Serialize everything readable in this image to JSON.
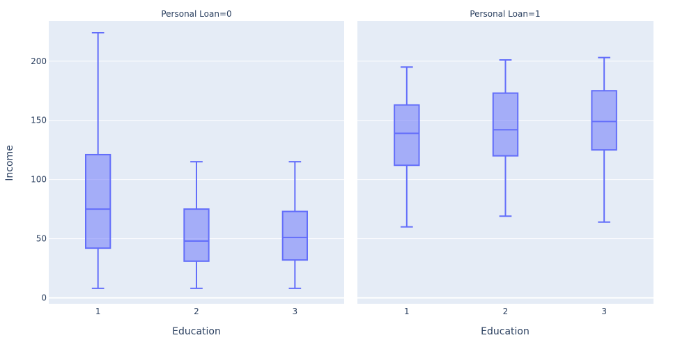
{
  "chart_data": {
    "type": "box",
    "ylabel": "Income",
    "ylim": [
      -5,
      234
    ],
    "yticks": [
      0,
      50,
      100,
      150,
      200
    ],
    "xlabel": "Education",
    "categories": [
      "1",
      "2",
      "3"
    ],
    "color": "#636efa",
    "grid": true,
    "facets": [
      {
        "title": "Personal Loan=0",
        "boxes": [
          {
            "category": "1",
            "min": 8,
            "q1": 42,
            "median": 75,
            "q3": 121,
            "max": 224
          },
          {
            "category": "2",
            "min": 8,
            "q1": 31,
            "median": 48,
            "q3": 75,
            "max": 115
          },
          {
            "category": "3",
            "min": 8,
            "q1": 32,
            "median": 51,
            "q3": 73,
            "max": 115
          }
        ]
      },
      {
        "title": "Personal Loan=1",
        "boxes": [
          {
            "category": "1",
            "min": 60,
            "q1": 112,
            "median": 139,
            "q3": 163,
            "max": 195
          },
          {
            "category": "2",
            "min": 69,
            "q1": 120,
            "median": 142,
            "q3": 173,
            "max": 201
          },
          {
            "category": "3",
            "min": 64,
            "q1": 125,
            "median": 149,
            "q3": 175,
            "max": 203
          }
        ]
      }
    ]
  }
}
